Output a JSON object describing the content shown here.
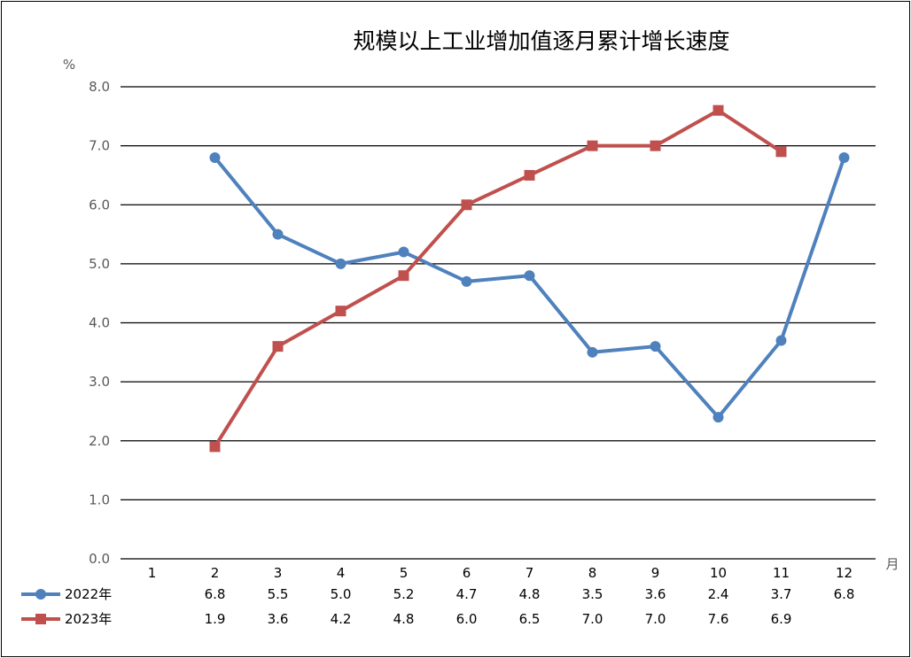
{
  "chart_data": {
    "type": "line",
    "title": "规模以上工业增加值逐月累计增长速度",
    "ylabel": "%",
    "xlabel": "月",
    "ylim": [
      0,
      8
    ],
    "yticks": [
      "0.0",
      "1.0",
      "2.0",
      "3.0",
      "4.0",
      "5.0",
      "6.0",
      "7.0",
      "8.0"
    ],
    "categories": [
      "1",
      "2",
      "3",
      "4",
      "5",
      "6",
      "7",
      "8",
      "9",
      "10",
      "11",
      "12"
    ],
    "grid": true,
    "legend": "bottom-left data table",
    "series": [
      {
        "name": "2022年",
        "color": "#4F81BD",
        "marker": "circle",
        "values": [
          null,
          6.8,
          5.5,
          5.0,
          5.2,
          4.7,
          4.8,
          3.5,
          3.6,
          2.4,
          3.7,
          6.8
        ],
        "labels": [
          "",
          "6.8",
          "5.5",
          "5.0",
          "5.2",
          "4.7",
          "4.8",
          "3.5",
          "3.6",
          "2.4",
          "3.7",
          "6.8"
        ]
      },
      {
        "name": "2023年",
        "color": "#C0504D",
        "marker": "square",
        "values": [
          null,
          1.9,
          3.6,
          4.2,
          4.8,
          6.0,
          6.5,
          7.0,
          7.0,
          7.6,
          6.9,
          null
        ],
        "labels": [
          "",
          "1.9",
          "3.6",
          "4.2",
          "4.8",
          "6.0",
          "6.5",
          "7.0",
          "7.0",
          "7.6",
          "6.9",
          ""
        ]
      }
    ]
  }
}
